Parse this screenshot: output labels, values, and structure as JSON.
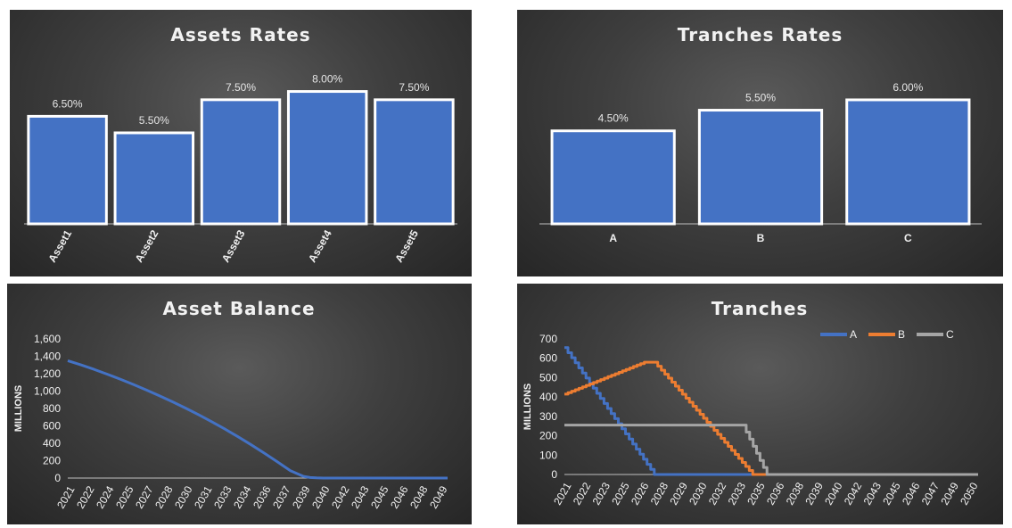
{
  "chart_data": [
    {
      "type": "bar",
      "title": "Assets Rates",
      "categories": [
        "Asset1",
        "Asset2",
        "Asset3",
        "Asset4",
        "Asset5"
      ],
      "values": [
        6.5,
        5.5,
        7.5,
        8.0,
        7.5
      ],
      "data_labels": [
        "6.50%",
        "5.50%",
        "7.50%",
        "8.00%",
        "7.50%"
      ],
      "ylim": [
        0,
        8.3
      ],
      "grid": false,
      "colors": {
        "bar": "#4472c4",
        "border": "#ffffff"
      }
    },
    {
      "type": "bar",
      "title": "Tranches Rates",
      "categories": [
        "A",
        "B",
        "C"
      ],
      "values": [
        4.5,
        5.5,
        6.0
      ],
      "data_labels": [
        "4.50%",
        "5.50%",
        "6.00%"
      ],
      "ylim": [
        0,
        6.3
      ],
      "grid": false,
      "colors": {
        "bar": "#4472c4",
        "border": "#ffffff"
      }
    },
    {
      "type": "line",
      "title": "Asset Balance",
      "ylabel": "MILLIONS",
      "xlabels": [
        "2021",
        "2022",
        "2024",
        "2025",
        "2027",
        "2028",
        "2030",
        "2031",
        "2033",
        "2034",
        "2036",
        "2037",
        "2039",
        "2040",
        "2042",
        "2043",
        "2045",
        "2046",
        "2048",
        "2049"
      ],
      "yticks": [
        "0",
        "200",
        "400",
        "600",
        "800",
        "1,000",
        "1,200",
        "1,400",
        "1,600"
      ],
      "xlim": [
        2021,
        2050
      ],
      "ylim": [
        0,
        1600
      ],
      "series": [
        {
          "x": [
            2021,
            2022,
            2023,
            2024,
            2025,
            2026,
            2027,
            2028,
            2029,
            2030,
            2031,
            2032,
            2033,
            2034,
            2035,
            2036,
            2037,
            2038,
            2039,
            2039.5,
            2040,
            2040.5,
            2041,
            2050
          ],
          "values": [
            1350,
            1302,
            1250,
            1195,
            1137,
            1077,
            1013,
            947,
            877,
            804,
            727,
            647,
            563,
            475,
            383,
            287,
            187,
            85,
            20,
            6,
            2,
            0,
            0,
            0
          ],
          "color": "#4472c4"
        }
      ]
    },
    {
      "type": "line",
      "title": "Tranches",
      "ylabel": "MILLIONS",
      "xlabels": [
        "2021",
        "2022",
        "2023",
        "2025",
        "2026",
        "2028",
        "2029",
        "2030",
        "2032",
        "2033",
        "2035",
        "2036",
        "2038",
        "2039",
        "2040",
        "2042",
        "2043",
        "2045",
        "2046",
        "2047",
        "2049",
        "2050"
      ],
      "yticks": [
        "0",
        "100",
        "200",
        "300",
        "400",
        "500",
        "600",
        "700"
      ],
      "xlim": [
        2021,
        2050
      ],
      "ylim": [
        0,
        700
      ],
      "legend": "top-right",
      "series": [
        {
          "name": "A",
          "color": "#4472c4",
          "x": [
            2021.0,
            2027.3,
            2050
          ],
          "values": [
            655,
            0,
            0
          ]
        },
        {
          "name": "B",
          "color": "#ed7d31",
          "x": [
            2021.0,
            2026.6,
            2027.3,
            2034.2,
            2050
          ],
          "values": [
            415,
            580,
            580,
            0,
            0
          ]
        },
        {
          "name": "C",
          "color": "#a5a5a5",
          "x": [
            2021.0,
            2033.5,
            2035.2,
            2050
          ],
          "values": [
            255,
            255,
            0,
            0
          ]
        }
      ]
    }
  ]
}
